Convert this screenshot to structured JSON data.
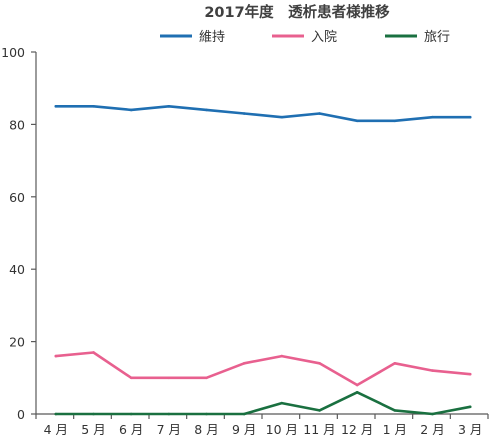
{
  "chart_data": {
    "type": "line",
    "title": "2017年度　透析患者様推移",
    "xlabel": "",
    "ylabel": "",
    "categories": [
      "4 月",
      "5 月",
      "6 月",
      "7 月",
      "8 月",
      "9 月",
      "10 月",
      "11 月",
      "12 月",
      "1 月",
      "2 月",
      "3 月"
    ],
    "ylim": [
      0,
      100
    ],
    "yticks": [
      0,
      20,
      40,
      60,
      80,
      100
    ],
    "grid": false,
    "legend_position": "top",
    "series": [
      {
        "name": "維持",
        "color": "#1f6fb2",
        "values": [
          85,
          85,
          84,
          85,
          84,
          83,
          82,
          83,
          81,
          81,
          82,
          82
        ]
      },
      {
        "name": "入院",
        "color": "#e8608f",
        "values": [
          16,
          17,
          10,
          10,
          10,
          14,
          16,
          14,
          8,
          14,
          12,
          11
        ]
      },
      {
        "name": "旅行",
        "color": "#1a7040",
        "values": [
          0,
          0,
          0,
          0,
          0,
          0,
          3,
          1,
          6,
          1,
          0,
          2
        ]
      }
    ]
  }
}
